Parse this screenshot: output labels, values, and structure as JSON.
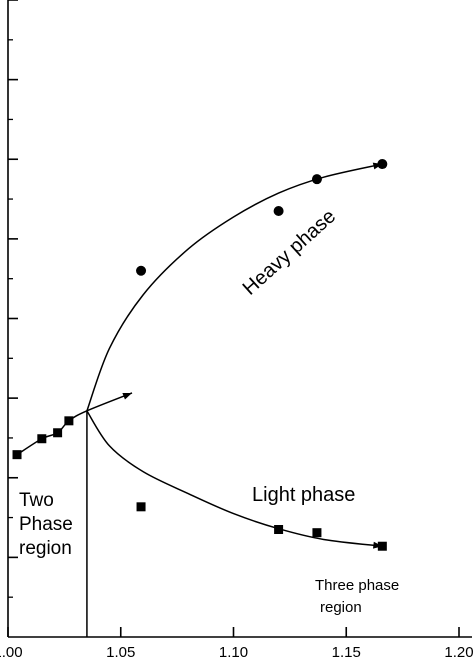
{
  "chart_data": {
    "type": "scatter",
    "title": "",
    "xlabel": "",
    "ylabel": "",
    "xlim": [
      1.0,
      1.2
    ],
    "ylim": [
      0,
      16
    ],
    "x_ticks": [
      1.0,
      1.05,
      1.1,
      1.15,
      1.2
    ],
    "x_tick_labels": [
      "1.00",
      "1.05",
      "1.10",
      "1.15",
      "1.20"
    ],
    "y_major_ticks": [
      2,
      4,
      6,
      8,
      10,
      12,
      14,
      16
    ],
    "y_minor_ticks": [
      1,
      3,
      5,
      7,
      9,
      11,
      13,
      15
    ],
    "grid": false,
    "series": [
      {
        "marker": "circle",
        "points": [
          {
            "x": 1.059,
            "y": 9.2
          },
          {
            "x": 1.12,
            "y": 10.7
          },
          {
            "x": 1.137,
            "y": 11.5
          },
          {
            "x": 1.166,
            "y": 11.88
          }
        ]
      },
      {
        "marker": "square",
        "points": [
          {
            "x": 1.004,
            "y": 4.58
          },
          {
            "x": 1.015,
            "y": 4.98
          },
          {
            "x": 1.022,
            "y": 5.13
          },
          {
            "x": 1.027,
            "y": 5.43
          },
          {
            "x": 1.059,
            "y": 3.27
          },
          {
            "x": 1.12,
            "y": 2.7
          },
          {
            "x": 1.137,
            "y": 2.62
          },
          {
            "x": 1.166,
            "y": 2.28
          }
        ]
      }
    ],
    "curves": [
      {
        "points": [
          {
            "x": 1.004,
            "y": 4.58
          },
          {
            "x": 1.015,
            "y": 4.98
          },
          {
            "x": 1.022,
            "y": 5.13
          },
          {
            "x": 1.027,
            "y": 5.43
          },
          {
            "x": 1.035,
            "y": 5.68
          },
          {
            "x": 1.055,
            "y": 6.13
          }
        ],
        "arrow_end": true
      },
      {
        "points": [
          {
            "x": 1.035,
            "y": 5.68
          },
          {
            "x": 1.045,
            "y": 7.25
          },
          {
            "x": 1.06,
            "y": 8.6
          },
          {
            "x": 1.08,
            "y": 9.75
          },
          {
            "x": 1.1,
            "y": 10.55
          },
          {
            "x": 1.12,
            "y": 11.15
          },
          {
            "x": 1.14,
            "y": 11.55
          },
          {
            "x": 1.166,
            "y": 11.88
          }
        ],
        "arrow_end": true
      },
      {
        "points": [
          {
            "x": 1.035,
            "y": 5.68
          },
          {
            "x": 1.045,
            "y": 4.8
          },
          {
            "x": 1.06,
            "y": 4.15
          },
          {
            "x": 1.08,
            "y": 3.6
          },
          {
            "x": 1.1,
            "y": 3.1
          },
          {
            "x": 1.12,
            "y": 2.72
          },
          {
            "x": 1.14,
            "y": 2.45
          },
          {
            "x": 1.166,
            "y": 2.28
          }
        ],
        "arrow_end": true
      }
    ],
    "boundary_line": {
      "x": 1.035,
      "y_from": 5.68,
      "y_to": 0
    },
    "annotations": {
      "heavy_phase": "Heavy phase",
      "light_phase": "Light phase",
      "two_phase_1": "Two",
      "two_phase_2": "Phase",
      "two_phase_3": "region",
      "three_phase_1": "Three phase",
      "three_phase_2": "region"
    }
  }
}
